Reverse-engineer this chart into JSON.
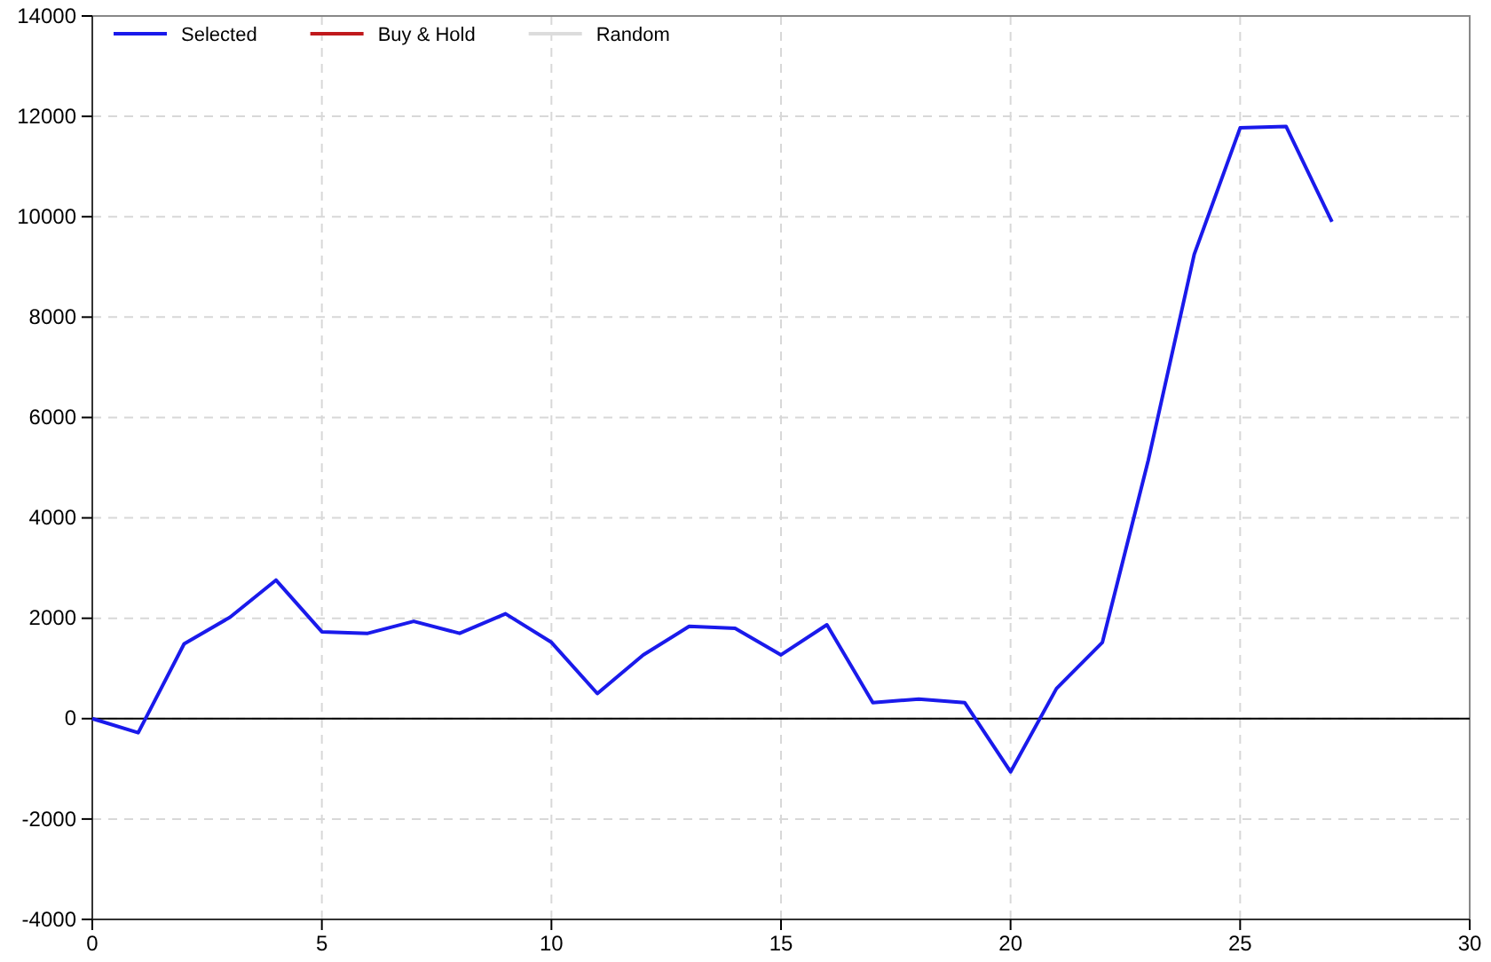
{
  "chart_data": {
    "type": "line",
    "x": [
      0,
      1,
      2,
      3,
      4,
      5,
      6,
      7,
      8,
      9,
      10,
      11,
      12,
      13,
      14,
      15,
      16,
      17,
      18,
      19,
      20,
      21,
      22,
      23,
      24,
      25,
      26,
      27
    ],
    "series": [
      {
        "name": "Selected",
        "color": "#1a1aeb",
        "values": [
          0,
          -280,
          1490,
          2020,
          2760,
          1730,
          1700,
          1940,
          1700,
          2090,
          1520,
          500,
          1270,
          1840,
          1800,
          1270,
          1870,
          320,
          390,
          320,
          -1060,
          600,
          1520,
          5150,
          9250,
          11770,
          11800,
          9900
        ]
      },
      {
        "name": "Buy & Hold",
        "color": "#c0191c",
        "values": [
          null,
          null,
          null,
          null,
          null,
          null,
          null,
          null,
          null,
          null,
          null,
          null,
          null,
          null,
          null,
          null,
          null,
          null,
          null,
          null,
          null,
          null,
          null,
          null,
          null,
          null,
          null,
          null
        ]
      },
      {
        "name": "Random",
        "color": "#dcdcdc",
        "values": [
          null,
          null,
          null,
          null,
          null,
          null,
          null,
          null,
          null,
          null,
          null,
          null,
          null,
          null,
          null,
          null,
          null,
          null,
          null,
          null,
          null,
          null,
          null,
          null,
          null,
          null,
          null,
          null
        ]
      }
    ],
    "xlim": [
      0,
      30
    ],
    "xticks": [
      0,
      5,
      10,
      15,
      20,
      25,
      30
    ],
    "ylim": [
      -4000,
      14000
    ],
    "yticks": [
      -4000,
      -2000,
      0,
      2000,
      4000,
      6000,
      8000,
      10000,
      12000,
      14000
    ],
    "ref_lines": [
      {
        "axis": "y",
        "value": 0,
        "color": "#000000"
      }
    ],
    "grid": true,
    "legend": "top left",
    "marker": "none",
    "line_style": "solid"
  }
}
